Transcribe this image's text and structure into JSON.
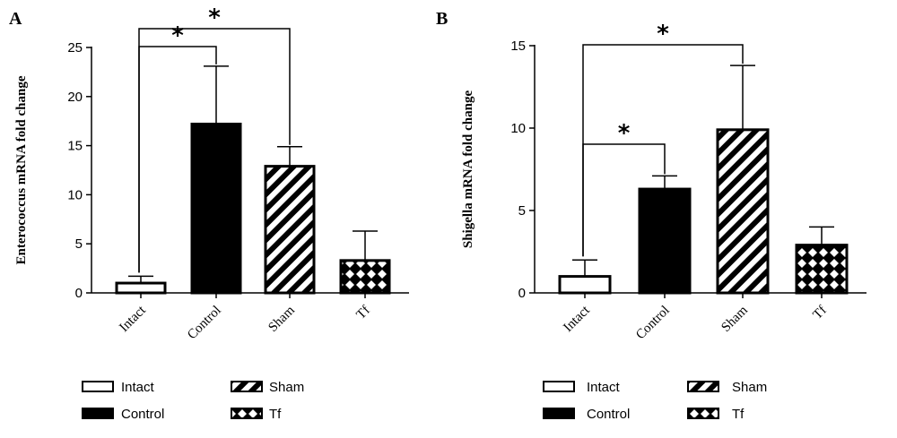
{
  "chart_data": [
    {
      "panel": "A",
      "type": "bar",
      "ylabel": "Enterococcus mRNA fold change",
      "xlabel": "",
      "categories": [
        "Intact",
        "Control",
        "Sham",
        "Tf"
      ],
      "values": [
        1.0,
        17.2,
        12.9,
        3.3
      ],
      "errors": [
        0.7,
        5.9,
        2.0,
        3.0
      ],
      "ylim": [
        0,
        25
      ],
      "yticks": [
        "0",
        "5",
        "10",
        "15",
        "20",
        "25"
      ],
      "significance": [
        {
          "from": "Intact",
          "to": "Control",
          "label": "*"
        },
        {
          "from": "Intact",
          "to": "Sham",
          "label": "*"
        }
      ],
      "legend": [
        {
          "label": "Intact",
          "pattern": "white"
        },
        {
          "label": "Sham",
          "pattern": "diagonal"
        },
        {
          "label": "Control",
          "pattern": "black"
        },
        {
          "label": "Tf",
          "pattern": "crosshatch"
        }
      ]
    },
    {
      "panel": "B",
      "type": "bar",
      "ylabel": "Shigella mRNA fold change",
      "xlabel": "",
      "categories": [
        "Intact",
        "Control",
        "Sham",
        "Tf"
      ],
      "values": [
        1.0,
        6.3,
        9.9,
        2.9
      ],
      "errors": [
        1.0,
        0.8,
        3.9,
        1.1
      ],
      "ylim": [
        0,
        15
      ],
      "yticks": [
        "0",
        "5",
        "10",
        "15"
      ],
      "significance": [
        {
          "from": "Intact",
          "to": "Control",
          "label": "*"
        },
        {
          "from": "Intact",
          "to": "Sham",
          "label": "*"
        }
      ],
      "legend": [
        {
          "label": "Intact",
          "pattern": "white"
        },
        {
          "label": "Sham",
          "pattern": "diagonal"
        },
        {
          "label": "Control",
          "pattern": "black"
        },
        {
          "label": "Tf",
          "pattern": "crosshatch"
        }
      ]
    }
  ],
  "colors": {
    "bar_stroke": "#000000",
    "control_fill": "#000000",
    "intact_fill": "#ffffff"
  }
}
